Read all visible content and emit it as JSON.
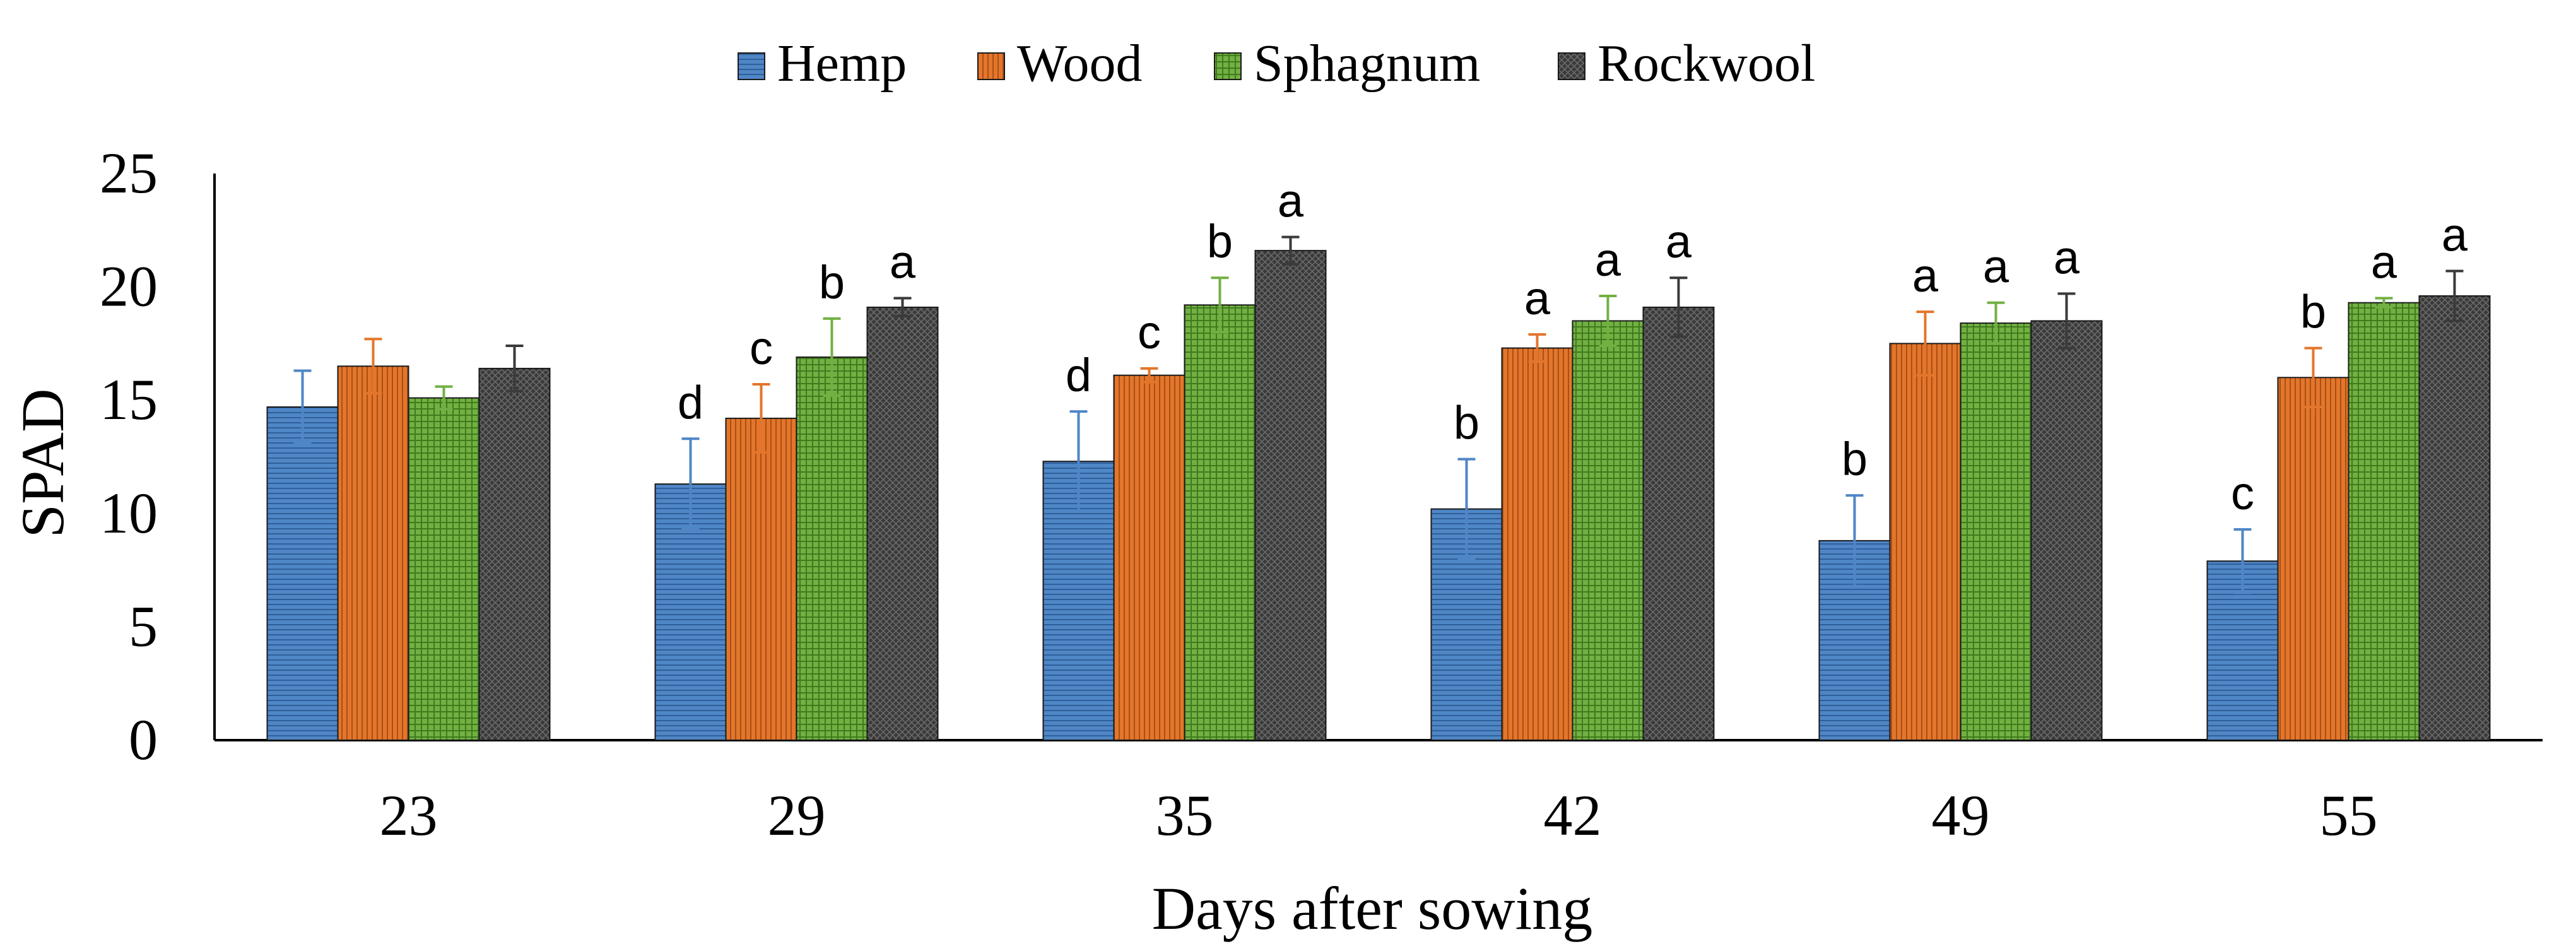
{
  "chart_data": {
    "type": "bar",
    "title": "",
    "xlabel": "Days after sowing",
    "ylabel": "SPAD",
    "ylim": [
      0,
      25
    ],
    "yticks": [
      0,
      5,
      10,
      15,
      20,
      25
    ],
    "grid": false,
    "legend_position": "top-center",
    "categories": [
      "23",
      "29",
      "35",
      "42",
      "49",
      "55"
    ],
    "series": [
      {
        "name": "Hemp",
        "color": "#4f86c6",
        "hatch": "horizontal",
        "values": [
          14.7,
          11.3,
          12.3,
          10.2,
          8.8,
          7.9
        ],
        "errors": [
          1.6,
          2.0,
          2.2,
          2.2,
          2.0,
          1.4
        ],
        "letters": [
          "",
          "d",
          "d",
          "b",
          "b",
          "c"
        ]
      },
      {
        "name": "Wood",
        "color": "#e3762c",
        "hatch": "vertical",
        "values": [
          16.5,
          14.2,
          16.1,
          17.3,
          17.5,
          16.0
        ],
        "errors": [
          1.2,
          1.5,
          0.3,
          0.6,
          1.4,
          1.3
        ],
        "letters": [
          "",
          "c",
          "c",
          "a",
          "a",
          "b"
        ]
      },
      {
        "name": "Sphagnum",
        "color": "#72b043",
        "hatch": "grid",
        "values": [
          15.1,
          16.9,
          19.2,
          18.5,
          18.4,
          19.3
        ],
        "errors": [
          0.5,
          1.7,
          1.2,
          1.1,
          0.9,
          0.2
        ],
        "letters": [
          "",
          "b",
          "b",
          "a",
          "a",
          "a"
        ]
      },
      {
        "name": "Rockwool",
        "color": "#3a3a3a",
        "hatch": "crosshatch",
        "values": [
          16.4,
          19.1,
          21.6,
          19.1,
          18.5,
          19.6
        ],
        "errors": [
          1.0,
          0.4,
          0.6,
          1.3,
          1.2,
          1.1
        ],
        "letters": [
          "",
          "a",
          "a",
          "a",
          "a",
          "a"
        ]
      }
    ]
  }
}
